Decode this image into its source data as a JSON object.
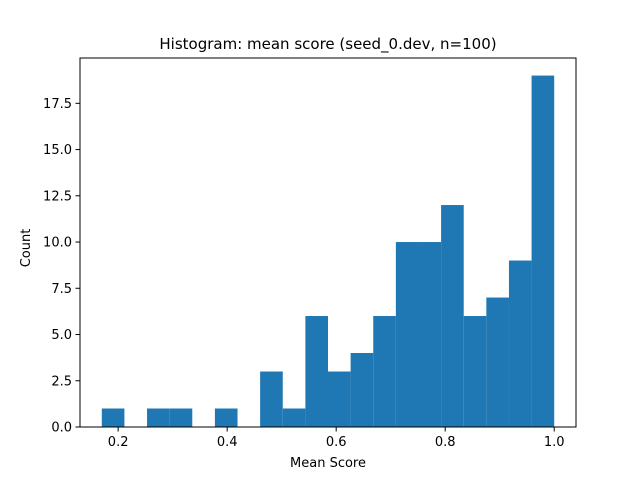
{
  "chart_data": {
    "type": "bar",
    "title": "Histogram: mean score (seed_0.dev, n=100)",
    "xlabel": "Mean Score",
    "ylabel": "Count",
    "xlim": [
      0.13,
      1.04
    ],
    "ylim": [
      0,
      19.95
    ],
    "xticks": [
      0.2,
      0.4,
      0.6,
      0.8,
      1.0
    ],
    "xtick_labels": [
      "0.2",
      "0.4",
      "0.6",
      "0.8",
      "1.0"
    ],
    "yticks": [
      0,
      2.5,
      5,
      7.5,
      10,
      12.5,
      15,
      17.5
    ],
    "ytick_labels": [
      "0.0",
      "2.5",
      "5.0",
      "7.5",
      "10.0",
      "12.5",
      "15.0",
      "17.5"
    ],
    "bin_edges": [
      0.17,
      0.2115,
      0.253,
      0.2945,
      0.336,
      0.3775,
      0.419,
      0.4605,
      0.502,
      0.5435,
      0.585,
      0.6265,
      0.668,
      0.7095,
      0.751,
      0.7925,
      0.834,
      0.8755,
      0.917,
      0.9585,
      1.0
    ],
    "counts": [
      1,
      0,
      1,
      1,
      0,
      1,
      0,
      3,
      1,
      6,
      3,
      4,
      6,
      10,
      10,
      12,
      6,
      7,
      9,
      19
    ],
    "bar_color": "#1f77b4",
    "grid": false
  }
}
